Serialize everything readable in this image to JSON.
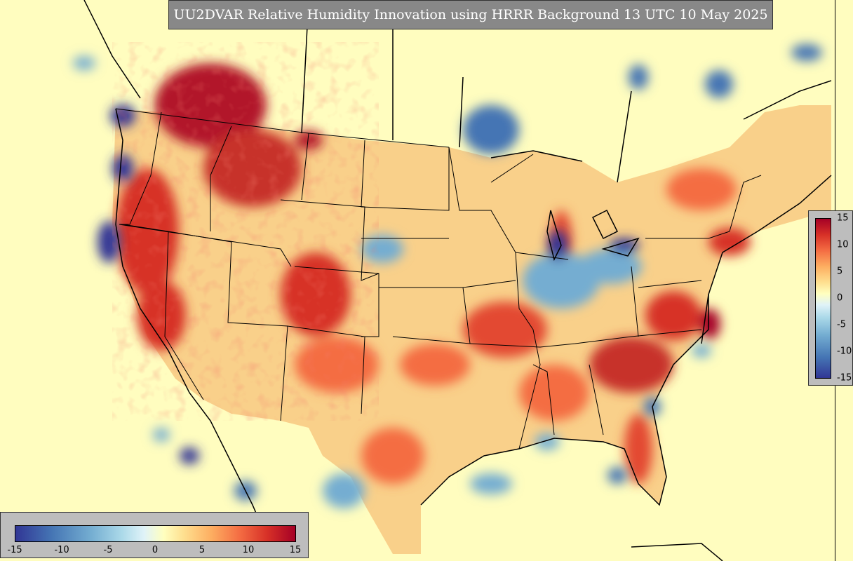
{
  "title": "UU2DVAR Relative Humidity Innovation using HRRR Background 13 UTC 10 May 2025",
  "colorbar": {
    "min": -15,
    "max": 15,
    "colormap": "RdYlBu_r",
    "ticks_right": [
      "15",
      "10",
      "5",
      "0",
      "-5",
      "-10",
      "-15"
    ],
    "ticks_bottom": [
      "-15",
      "-10",
      "-5",
      "0",
      "5",
      "10",
      "15"
    ]
  },
  "colors": {
    "ocean_zero": "#fffdbf",
    "positive_max": "#a50026",
    "negative_max": "#313695",
    "title_background": "#888888",
    "colorbar_panel": "#bdbdbd"
  }
}
